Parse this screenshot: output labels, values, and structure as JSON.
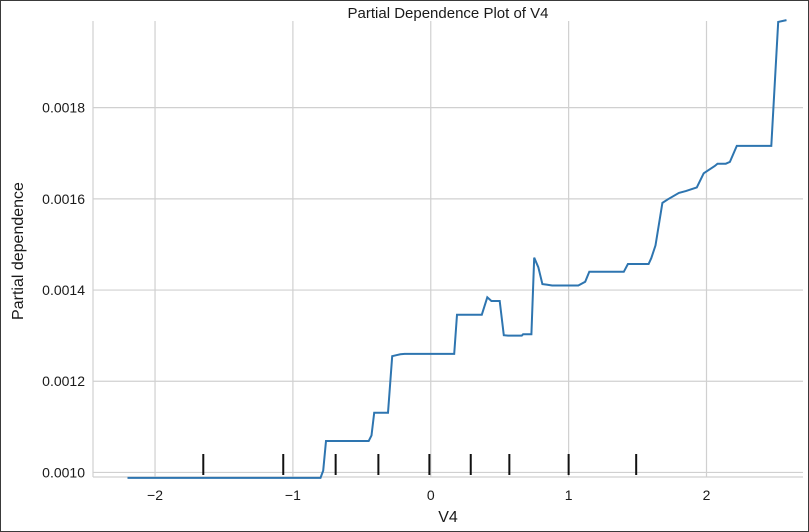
{
  "chart_data": {
    "type": "line",
    "title": "Partial Dependence Plot of V4",
    "xlabel": "V4",
    "ylabel": "Partial dependence",
    "xlim": [
      -2.45,
      2.7
    ],
    "ylim": [
      0.00099,
      0.00199
    ],
    "x_ticks": [
      -2,
      -1,
      0,
      1,
      2
    ],
    "x_tick_labels": [
      "−2",
      "−1",
      "0",
      "1",
      "2"
    ],
    "y_ticks": [
      0.001,
      0.0012,
      0.0014,
      0.0016,
      0.0018
    ],
    "y_tick_labels": [
      "0.0010",
      "0.0012",
      "0.0014",
      "0.0016",
      "0.0018"
    ],
    "grid": true,
    "line_color": "#2e75b0",
    "series": [
      {
        "x": [
          -2.2,
          -0.8,
          -0.78,
          -0.76,
          -0.45,
          -0.43,
          -0.41,
          -0.31,
          -0.28,
          -0.25,
          -0.22,
          -0.19,
          0.0,
          0.17,
          0.19,
          0.22,
          0.37,
          0.41,
          0.44,
          0.5,
          0.53,
          0.56,
          0.66,
          0.67,
          0.73,
          0.75,
          0.78,
          0.81,
          0.84,
          0.88,
          0.91,
          1.07,
          1.12,
          1.15,
          1.4,
          1.43,
          1.58,
          1.6,
          1.63,
          1.68,
          1.72,
          1.8,
          1.85,
          1.93,
          1.98,
          2.06,
          2.08,
          2.14,
          2.17,
          2.22,
          2.47,
          2.52,
          2.58
        ],
        "y": [
          0.000988,
          0.000988,
          0.001004,
          0.001069,
          0.001069,
          0.001081,
          0.001131,
          0.001131,
          0.001255,
          0.001257,
          0.001259,
          0.00126,
          0.00126,
          0.00126,
          0.001346,
          0.001346,
          0.001346,
          0.001384,
          0.001376,
          0.001376,
          0.001301,
          0.0013,
          0.0013,
          0.001303,
          0.001303,
          0.001471,
          0.00145,
          0.001413,
          0.001412,
          0.00141,
          0.00141,
          0.00141,
          0.001418,
          0.00144,
          0.00144,
          0.001457,
          0.001457,
          0.00147,
          0.001498,
          0.001591,
          0.001599,
          0.001613,
          0.001617,
          0.001625,
          0.001656,
          0.001672,
          0.001677,
          0.001677,
          0.001681,
          0.001716,
          0.001716,
          0.001988,
          0.001992
        ]
      }
    ],
    "rug_x": [
      -1.65,
      -1.07,
      -0.69,
      -0.38,
      -0.01,
      0.29,
      0.57,
      1.0,
      1.49
    ]
  }
}
